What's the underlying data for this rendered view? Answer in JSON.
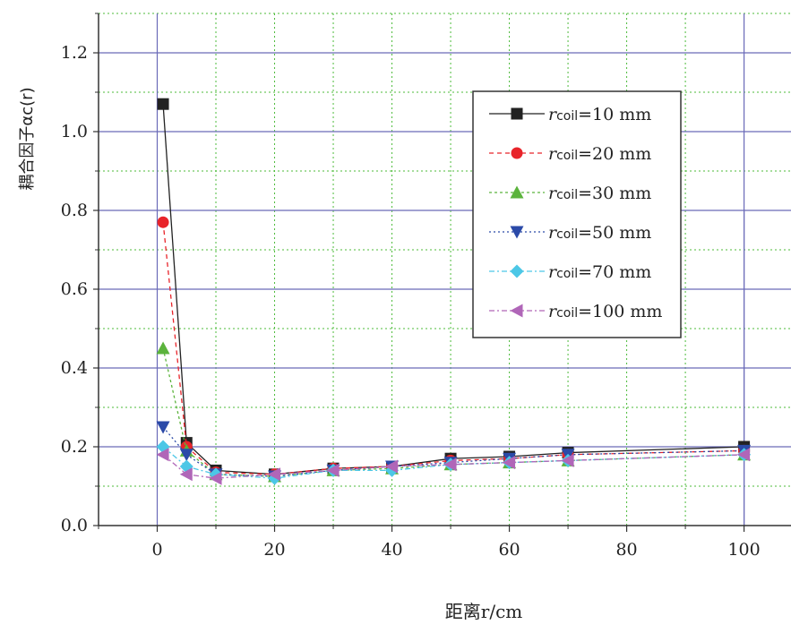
{
  "chart_data": {
    "type": "line",
    "title": "",
    "xlabel": "距离r/cm",
    "ylabel": "耦合因子αc(r)",
    "xlim": [
      -10,
      108
    ],
    "ylim": [
      0.0,
      1.3
    ],
    "x_ticks": [
      0,
      20,
      40,
      60,
      80,
      100
    ],
    "x_tick_labels": [
      "0",
      "20",
      "40",
      "60",
      "80",
      "100"
    ],
    "y_ticks": [
      0.0,
      0.2,
      0.4,
      0.6,
      0.8,
      1.0,
      1.2
    ],
    "y_tick_labels": [
      "0.0",
      "0.2",
      "0.4",
      "0.6",
      "0.8",
      "1.0",
      "1.2"
    ],
    "grid": true,
    "legend_position": "top-right",
    "x": [
      1,
      5,
      10,
      20,
      30,
      40,
      50,
      60,
      70,
      100
    ],
    "series": [
      {
        "name": "r_coil=10 mm",
        "label_var": "r",
        "label_sub": "coil",
        "label_rest": "=10 mm",
        "color": "#222222",
        "marker": "square",
        "dash": "",
        "values": [
          1.07,
          0.21,
          0.14,
          0.13,
          0.145,
          0.15,
          0.17,
          0.175,
          0.185,
          0.2
        ]
      },
      {
        "name": "r_coil=20 mm",
        "label_var": "r",
        "label_sub": "coil",
        "label_rest": "=20 mm",
        "color": "#e8242a",
        "marker": "circle",
        "dash": "5,4",
        "values": [
          0.77,
          0.2,
          0.135,
          0.13,
          0.145,
          0.15,
          0.165,
          0.17,
          0.18,
          0.19
        ]
      },
      {
        "name": "r_coil=30 mm",
        "label_var": "r",
        "label_sub": "coil",
        "label_rest": "=30 mm",
        "color": "#5bb33c",
        "marker": "triangle-up",
        "dash": "3,3",
        "values": [
          0.45,
          0.19,
          0.13,
          0.125,
          0.14,
          0.145,
          0.155,
          0.16,
          0.165,
          0.18
        ]
      },
      {
        "name": "r_coil=50 mm",
        "label_var": "r",
        "label_sub": "coil",
        "label_rest": "=50 mm",
        "color": "#2b4aa8",
        "marker": "triangle-down",
        "dash": "2,3",
        "values": [
          0.25,
          0.18,
          0.13,
          0.125,
          0.14,
          0.15,
          0.16,
          0.17,
          0.18,
          0.19
        ]
      },
      {
        "name": "r_coil=70 mm",
        "label_var": "r",
        "label_sub": "coil",
        "label_rest": "=70 mm",
        "color": "#4cc7e6",
        "marker": "diamond",
        "dash": "6,3,2,3",
        "values": [
          0.2,
          0.15,
          0.13,
          0.12,
          0.14,
          0.14,
          0.155,
          0.16,
          0.165,
          0.18
        ]
      },
      {
        "name": "r_coil=100 mm",
        "label_var": "r",
        "label_sub": "coil",
        "label_rest": "=100 mm",
        "color": "#b066b8",
        "marker": "triangle-left",
        "dash": "6,3,2,3",
        "values": [
          0.18,
          0.13,
          0.12,
          0.13,
          0.14,
          0.15,
          0.155,
          0.16,
          0.165,
          0.18
        ]
      }
    ]
  }
}
